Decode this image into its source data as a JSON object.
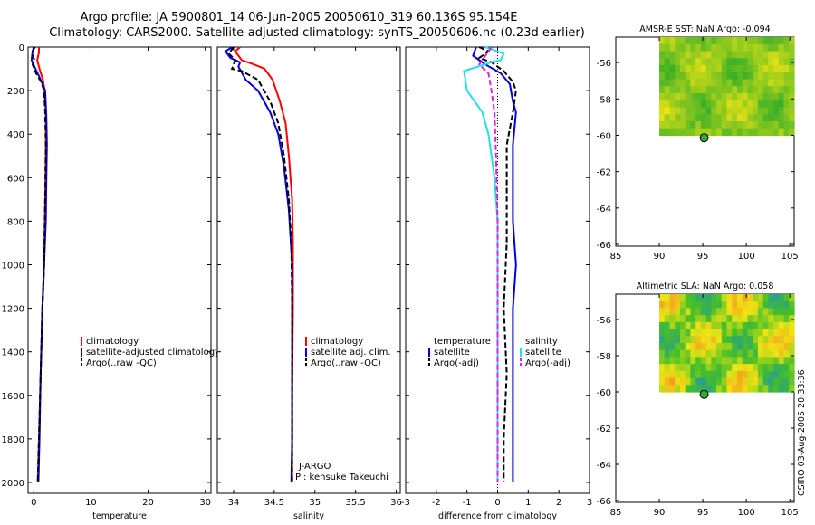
{
  "page_title": {
    "line1": "Argo profile: JA 5900801_14 06-Jun-2005 20050610_319 60.136S 95.154E",
    "line2": "Climatology: CARS2000. Satellite-adjusted climatology: synTS_20050606.nc (0.23d earlier)"
  },
  "colors": {
    "climatology": "#ff0000",
    "satellite": "#0000dd",
    "argo": "#000000",
    "sal_diff_adj": "#dd22dd",
    "sal_diff_sat": "#22e0e8",
    "argo_dot": "#33aa33"
  },
  "footer_stamp": "CSIRO 03-Aug-2005 20:33:36",
  "chart_data": [
    {
      "id": "temperature",
      "type": "line",
      "xlabel": "temperature",
      "xlim": [
        -1,
        31
      ],
      "ylim": [
        0,
        2050
      ],
      "xticks": [
        0,
        10,
        20,
        30
      ],
      "yticks": [
        0,
        200,
        400,
        600,
        800,
        1000,
        1200,
        1400,
        1600,
        1800,
        2000
      ],
      "legend": [
        "climatology",
        "satellite-adjusted climatology",
        "Argo(..raw -QC)"
      ],
      "series": [
        {
          "name": "climatology",
          "color_key": "climatology",
          "points": [
            [
              0.9,
              0
            ],
            [
              0.9,
              25
            ],
            [
              0.6,
              60
            ],
            [
              1.0,
              100
            ],
            [
              1.6,
              150
            ],
            [
              1.9,
              200
            ],
            [
              2.1,
              300
            ],
            [
              2.1,
              500
            ],
            [
              2.0,
              700
            ],
            [
              1.8,
              1000
            ],
            [
              1.5,
              1200
            ],
            [
              1.2,
              1500
            ],
            [
              0.9,
              1800
            ],
            [
              0.7,
              2000
            ]
          ]
        },
        {
          "name": "satellite",
          "color_key": "satellite",
          "points": [
            [
              0.2,
              0
            ],
            [
              -0.2,
              20
            ],
            [
              -0.4,
              60
            ],
            [
              0.3,
              100
            ],
            [
              1.2,
              150
            ],
            [
              2.0,
              200
            ],
            [
              2.2,
              320
            ],
            [
              2.3,
              450
            ],
            [
              2.2,
              600
            ],
            [
              2.1,
              800
            ],
            [
              1.8,
              1000
            ],
            [
              1.5,
              1200
            ],
            [
              1.2,
              1500
            ],
            [
              1.0,
              1800
            ],
            [
              0.8,
              2000
            ]
          ]
        },
        {
          "name": "argo",
          "color_key": "argo",
          "points": [
            [
              0.0,
              0
            ],
            [
              -0.3,
              30
            ],
            [
              0.1,
              60
            ],
            [
              -0.2,
              80
            ],
            [
              0.4,
              120
            ],
            [
              1.3,
              160
            ],
            [
              1.8,
              200
            ],
            [
              2.0,
              300
            ],
            [
              2.1,
              450
            ],
            [
              2.0,
              700
            ],
            [
              1.8,
              1000
            ],
            [
              1.5,
              1200
            ],
            [
              1.2,
              1500
            ],
            [
              0.9,
              1800
            ],
            [
              0.7,
              2000
            ]
          ]
        }
      ]
    },
    {
      "id": "salinity",
      "type": "line",
      "xlabel": "salinity",
      "xlim": [
        33.8,
        36.05
      ],
      "ylim": [
        0,
        2050
      ],
      "xticks": [
        34,
        34.5,
        35,
        35.5,
        36
      ],
      "xticklabels": [
        "34",
        "34.5",
        "35",
        "35.5",
        "36"
      ],
      "yticks": [
        0,
        200,
        400,
        600,
        800,
        1000,
        1200,
        1400,
        1600,
        1800,
        2000
      ],
      "legend": [
        "climatology",
        "satellite adj. clim.",
        "Argo(..raw -QC)"
      ],
      "annotations": [
        "J-ARGO",
        "PI: kensuke Takeuchi"
      ],
      "series": [
        {
          "name": "climatology",
          "color_key": "climatology",
          "points": [
            [
              34.08,
              0
            ],
            [
              34.02,
              20
            ],
            [
              34.1,
              60
            ],
            [
              34.25,
              80
            ],
            [
              34.38,
              100
            ],
            [
              34.48,
              150
            ],
            [
              34.57,
              250
            ],
            [
              34.64,
              350
            ],
            [
              34.68,
              500
            ],
            [
              34.72,
              700
            ],
            [
              34.73,
              900
            ],
            [
              34.73,
              1200
            ],
            [
              34.72,
              1600
            ],
            [
              34.72,
              2000
            ]
          ]
        },
        {
          "name": "satellite",
          "color_key": "satellite",
          "points": [
            [
              33.98,
              0
            ],
            [
              33.9,
              20
            ],
            [
              33.96,
              50
            ],
            [
              34.08,
              70
            ],
            [
              34.06,
              90
            ],
            [
              34.15,
              150
            ],
            [
              34.3,
              200
            ],
            [
              34.45,
              300
            ],
            [
              34.55,
              400
            ],
            [
              34.62,
              550
            ],
            [
              34.68,
              750
            ],
            [
              34.72,
              1000
            ],
            [
              34.72,
              1400
            ],
            [
              34.72,
              1800
            ],
            [
              34.71,
              2000
            ]
          ]
        },
        {
          "name": "argo",
          "color_key": "argo",
          "points": [
            [
              34.0,
              0
            ],
            [
              33.94,
              30
            ],
            [
              34.02,
              60
            ],
            [
              33.98,
              100
            ],
            [
              34.1,
              110
            ],
            [
              34.3,
              150
            ],
            [
              34.45,
              250
            ],
            [
              34.55,
              350
            ],
            [
              34.62,
              500
            ],
            [
              34.68,
              700
            ],
            [
              34.71,
              900
            ],
            [
              34.72,
              1200
            ],
            [
              34.72,
              1600
            ],
            [
              34.72,
              2000
            ]
          ]
        }
      ]
    },
    {
      "id": "difference",
      "type": "line",
      "xlabel": "difference from climatology",
      "xlim": [
        -3,
        3
      ],
      "ylim": [
        0,
        2050
      ],
      "xticks": [
        -3,
        -2,
        -1,
        0,
        1,
        2,
        3
      ],
      "yticks": [
        0,
        200,
        400,
        600,
        800,
        1000,
        1200,
        1400,
        1600,
        1800,
        2000
      ],
      "legend_temperature": [
        "temperature",
        "satellite",
        "Argo(-adj)"
      ],
      "legend_salinity": [
        "salinity",
        "satellite",
        "Argo(-adj)"
      ],
      "series": [
        {
          "name": "temperature satellite",
          "color_key": "satellite",
          "points": [
            [
              -0.7,
              0
            ],
            [
              -0.8,
              40
            ],
            [
              -0.6,
              60
            ],
            [
              -0.4,
              80
            ],
            [
              0.1,
              120
            ],
            [
              0.4,
              170
            ],
            [
              0.5,
              250
            ],
            [
              0.6,
              300
            ],
            [
              0.5,
              450
            ],
            [
              0.5,
              600
            ],
            [
              0.5,
              800
            ],
            [
              0.6,
              1000
            ],
            [
              0.5,
              1200
            ],
            [
              0.5,
              1500
            ],
            [
              0.5,
              1800
            ],
            [
              0.5,
              2000
            ]
          ]
        },
        {
          "name": "temperature argo",
          "color_key": "argo",
          "points": [
            [
              -0.6,
              0
            ],
            [
              -0.3,
              20
            ],
            [
              -0.6,
              50
            ],
            [
              -0.2,
              70
            ],
            [
              0.2,
              110
            ],
            [
              0.5,
              160
            ],
            [
              0.6,
              200
            ],
            [
              0.5,
              300
            ],
            [
              0.3,
              450
            ],
            [
              0.3,
              700
            ],
            [
              0.3,
              900
            ],
            [
              0.2,
              1200
            ],
            [
              0.3,
              1500
            ],
            [
              0.2,
              1800
            ],
            [
              0.2,
              2000
            ]
          ]
        },
        {
          "name": "salinity satellite",
          "color_key": "sal_diff_sat",
          "points": [
            [
              -0.4,
              0
            ],
            [
              0.2,
              30
            ],
            [
              0.1,
              60
            ],
            [
              -0.2,
              70
            ],
            [
              -1.1,
              110
            ],
            [
              -1.0,
              200
            ],
            [
              -0.5,
              300
            ],
            [
              -0.3,
              400
            ],
            [
              -0.1,
              600
            ],
            [
              0.0,
              800
            ],
            [
              0.0,
              1200
            ],
            [
              0.0,
              1600
            ],
            [
              0.0,
              2000
            ]
          ]
        },
        {
          "name": "salinity argo",
          "color_key": "sal_diff_adj",
          "points": [
            [
              -0.2,
              0
            ],
            [
              -0.4,
              40
            ],
            [
              -0.6,
              80
            ],
            [
              -0.3,
              120
            ],
            [
              -0.2,
              200
            ],
            [
              -0.1,
              300
            ],
            [
              -0.05,
              500
            ],
            [
              0.0,
              800
            ],
            [
              0.0,
              1200
            ],
            [
              0.0,
              2000
            ]
          ]
        }
      ]
    },
    {
      "id": "sst_map",
      "type": "heatmap",
      "title": "AMSR-E SST: NaN Argo: -0.094",
      "xlim": [
        85,
        105.5
      ],
      "ylim": [
        -66.1,
        -54.6
      ],
      "xticks": [
        85,
        90,
        95,
        100,
        105
      ],
      "yticks": [
        -56,
        -58,
        -60,
        -62,
        -64,
        -66
      ],
      "data_region": {
        "lon": [
          90,
          105.5
        ],
        "lat": [
          -60,
          -54.6
        ]
      },
      "argo_point": [
        95.154,
        -60.136
      ]
    },
    {
      "id": "sla_map",
      "type": "heatmap",
      "title": "Altimetric SLA: NaN Argo: 0.058",
      "xlim": [
        85,
        105.5
      ],
      "ylim": [
        -66.1,
        -54.6
      ],
      "xticks": [
        85,
        90,
        95,
        100,
        105
      ],
      "yticks": [
        -56,
        -58,
        -60,
        -62,
        -64,
        -66
      ],
      "data_region": {
        "lon": [
          90,
          105.5
        ],
        "lat": [
          -60,
          -54.6
        ]
      },
      "argo_point": [
        95.154,
        -60.136
      ]
    }
  ]
}
